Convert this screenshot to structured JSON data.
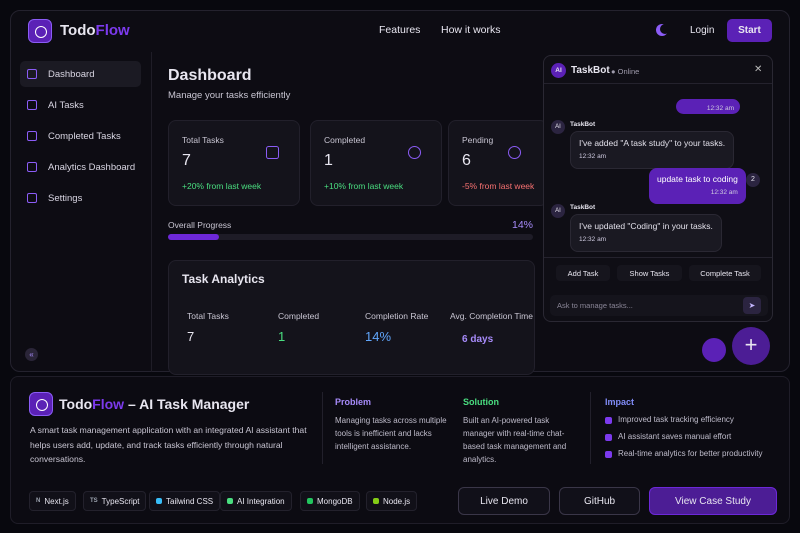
{
  "header": {
    "logo_a": "Todo",
    "logo_b": "Flow",
    "nav": [
      "Features",
      "How it works"
    ],
    "login": "Login",
    "start": "Start"
  },
  "sidebar": {
    "items": [
      "Dashboard",
      "AI Tasks",
      "Completed Tasks",
      "Analytics Dashboard",
      "Settings"
    ]
  },
  "dashboard": {
    "title": "Dashboard",
    "subtitle": "Manage your tasks efficiently",
    "stats": [
      {
        "label": "Total Tasks",
        "value": 7,
        "change": "+20% from last week"
      },
      {
        "label": "Completed",
        "value": 1,
        "change": "+10% from last week"
      },
      {
        "label": "Pending",
        "value": 6,
        "change": "-5% from last week"
      }
    ],
    "progress": {
      "label": "Overall Progress",
      "value": 14,
      "value_label": "14%"
    },
    "analytics": {
      "title": "Task Analytics",
      "metrics": [
        {
          "label": "Total Tasks",
          "value": "7"
        },
        {
          "label": "Completed",
          "value": "1"
        },
        {
          "label": "Completion Rate",
          "value": "14%"
        },
        {
          "label": "Avg. Completion Time",
          "value": "6 days"
        }
      ]
    }
  },
  "chat": {
    "avatar": "AI",
    "title": "TaskBot",
    "status": "Online",
    "messages": [
      {
        "time": "12:32 am"
      },
      {
        "sender": "TaskBot",
        "text": "I've added \"A task study\" to your tasks.",
        "time": "12:32 am"
      },
      {
        "text": "update task to coding",
        "time": "12:32 am",
        "badge": "2"
      },
      {
        "sender": "TaskBot",
        "text": "I've updated \"Coding\" in your tasks.",
        "time": "12:32 am"
      }
    ],
    "actions": [
      "Add Task",
      "Show Tasks",
      "Complete Task"
    ],
    "placeholder": "Ask to manage tasks..."
  },
  "project": {
    "title_a": "Todo",
    "title_b": "Flow",
    "title_c": " – AI Task Manager",
    "description": "A smart task management application with an integrated AI assistant that helps users add, update, and track tasks efficiently through natural conversations.",
    "problem": {
      "heading": "Problem",
      "text": "Managing tasks across multiple tools is inefficient and lacks intelligent assistance."
    },
    "solution": {
      "heading": "Solution",
      "text": "Built an AI-powered task manager with real-time chat-based task management and analytics."
    },
    "impact": {
      "heading": "Impact",
      "items": [
        "Improved task tracking efficiency",
        "AI assistant saves manual effort",
        "Real-time analytics for better productivity"
      ]
    },
    "tech": [
      {
        "icon": "N",
        "name": "Next.js"
      },
      {
        "icon": "TS",
        "name": "TypeScript"
      },
      {
        "name": "Tailwind CSS"
      },
      {
        "name": "AI Integration"
      },
      {
        "name": "MongoDB"
      },
      {
        "name": "Node.js"
      }
    ],
    "buttons": [
      "Live Demo",
      "GitHub",
      "View Case Study"
    ]
  }
}
